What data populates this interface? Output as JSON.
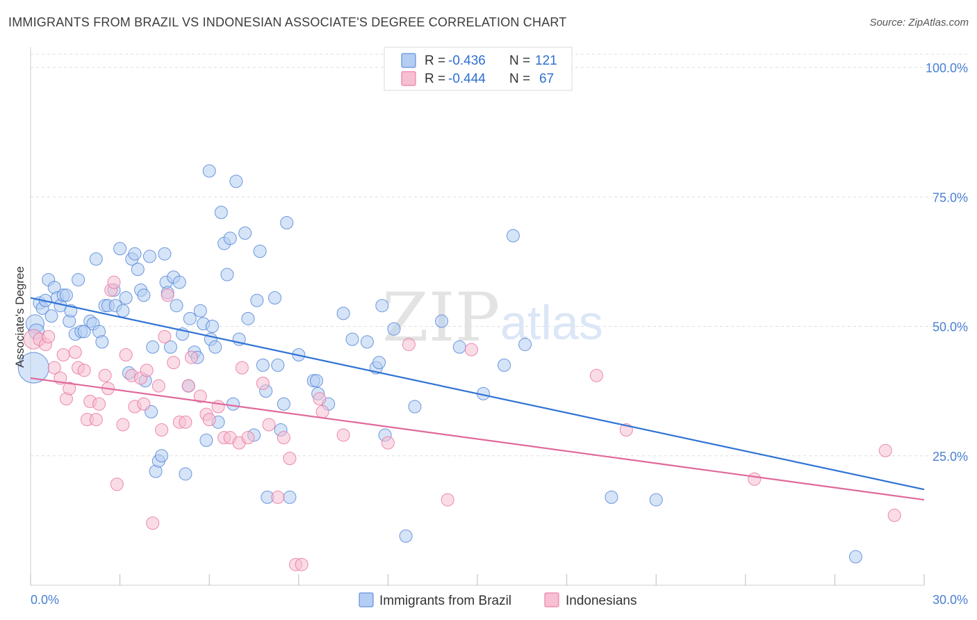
{
  "title": "IMMIGRANTS FROM BRAZIL VS INDONESIAN ASSOCIATE'S DEGREE CORRELATION CHART",
  "source": "Source: ZipAtlas.com",
  "watermark": {
    "zip": "ZIP",
    "atlas": "atlas"
  },
  "colors": {
    "blue": "#4a7fd4",
    "blue_fill": "#b4cdf2",
    "blue_line": "#2f72d4",
    "pink": "#e86e9c",
    "pink_fill": "#f6bfd2",
    "pink_line": "#e0689a",
    "grid": "#dddddd"
  },
  "legend": {
    "rows": [
      {
        "r_label": "R =",
        "r_value": "-0.436",
        "n_label": "N =",
        "n_value": "121",
        "series": "blue"
      },
      {
        "r_label": "R =",
        "r_value": "-0.444",
        "n_label": "N =",
        "n_value": "67",
        "series": "pink"
      }
    ]
  },
  "chart_data": {
    "type": "scatter",
    "title": "IMMIGRANTS FROM BRAZIL VS INDONESIAN ASSOCIATE'S DEGREE CORRELATION CHART",
    "xlabel": "",
    "ylabel": "Associate's Degree",
    "xlim": [
      0,
      30
    ],
    "ylim": [
      0,
      105
    ],
    "x_tick_labels": [
      "0.0%",
      "30.0%"
    ],
    "y_ticks": [
      25,
      50,
      75,
      100
    ],
    "y_tick_labels": [
      "25.0%",
      "50.0%",
      "75.0%",
      "100.0%"
    ],
    "grid": true,
    "legend_position": "top-center",
    "series": [
      {
        "name": "Immigrants from Brazil",
        "color": "blue",
        "trend": [
          [
            0,
            55.5
          ],
          [
            30,
            18.5
          ]
        ],
        "points": [
          [
            0.1,
            42.0,
            22
          ],
          [
            0.15,
            50.5,
            13
          ],
          [
            0.2,
            49,
            11
          ],
          [
            0.3,
            54.5,
            9
          ],
          [
            0.4,
            53.5,
            9
          ],
          [
            0.5,
            55,
            9
          ],
          [
            0.6,
            59,
            9
          ],
          [
            0.7,
            52,
            9
          ],
          [
            0.8,
            57.5,
            9
          ],
          [
            0.9,
            55.5,
            9
          ],
          [
            1.0,
            54,
            9
          ],
          [
            1.1,
            56,
            9
          ],
          [
            1.2,
            56,
            9
          ],
          [
            1.3,
            51,
            9
          ],
          [
            1.35,
            53,
            9
          ],
          [
            1.5,
            48.5,
            9
          ],
          [
            1.6,
            59,
            9
          ],
          [
            1.7,
            49,
            9
          ],
          [
            1.8,
            49,
            9
          ],
          [
            2.0,
            51,
            9
          ],
          [
            2.1,
            50.5,
            9
          ],
          [
            2.2,
            63,
            9
          ],
          [
            2.3,
            49,
            9
          ],
          [
            2.4,
            47,
            9
          ],
          [
            2.5,
            54,
            9
          ],
          [
            2.6,
            54,
            9
          ],
          [
            2.8,
            57,
            9
          ],
          [
            2.85,
            54,
            9
          ],
          [
            3.0,
            65,
            9
          ],
          [
            3.1,
            53,
            9
          ],
          [
            3.2,
            55.5,
            9
          ],
          [
            3.3,
            41,
            9
          ],
          [
            3.4,
            63,
            9
          ],
          [
            3.5,
            64,
            9
          ],
          [
            3.6,
            61,
            9
          ],
          [
            3.7,
            57,
            9
          ],
          [
            3.8,
            56,
            9
          ],
          [
            3.85,
            39.5,
            9
          ],
          [
            4.0,
            63.5,
            9
          ],
          [
            4.05,
            33.5,
            9
          ],
          [
            4.1,
            46,
            9
          ],
          [
            4.2,
            22,
            9
          ],
          [
            4.3,
            24,
            9
          ],
          [
            4.4,
            25,
            9
          ],
          [
            4.5,
            64,
            9
          ],
          [
            4.55,
            58.5,
            9
          ],
          [
            4.6,
            56.5,
            9
          ],
          [
            4.7,
            46,
            9
          ],
          [
            4.8,
            59.5,
            9
          ],
          [
            4.9,
            54,
            9
          ],
          [
            5.0,
            58.5,
            9
          ],
          [
            5.1,
            48.5,
            9
          ],
          [
            5.2,
            21.5,
            9
          ],
          [
            5.3,
            38.5,
            9
          ],
          [
            5.35,
            51.5,
            9
          ],
          [
            5.5,
            45,
            9
          ],
          [
            5.6,
            44,
            9
          ],
          [
            5.7,
            53,
            9
          ],
          [
            5.8,
            50.5,
            9
          ],
          [
            5.9,
            28,
            9
          ],
          [
            6.0,
            80,
            9
          ],
          [
            6.05,
            47.5,
            9
          ],
          [
            6.1,
            50,
            9
          ],
          [
            6.2,
            46,
            9
          ],
          [
            6.3,
            31.5,
            9
          ],
          [
            6.4,
            72,
            9
          ],
          [
            6.5,
            66,
            9
          ],
          [
            6.6,
            60,
            9
          ],
          [
            6.7,
            67,
            9
          ],
          [
            6.8,
            35,
            9
          ],
          [
            6.9,
            78,
            9
          ],
          [
            7.0,
            47.5,
            9
          ],
          [
            7.2,
            68,
            9
          ],
          [
            7.3,
            51.5,
            9
          ],
          [
            7.5,
            29,
            9
          ],
          [
            7.6,
            55,
            9
          ],
          [
            7.7,
            64.5,
            9
          ],
          [
            7.8,
            42.5,
            9
          ],
          [
            7.9,
            37.5,
            9
          ],
          [
            7.95,
            17,
            9
          ],
          [
            8.2,
            55.5,
            9
          ],
          [
            8.3,
            42.5,
            9
          ],
          [
            8.4,
            30,
            9
          ],
          [
            8.5,
            35,
            9
          ],
          [
            8.6,
            70,
            9
          ],
          [
            8.7,
            17,
            9
          ],
          [
            9.0,
            44.5,
            9
          ],
          [
            9.5,
            39.5,
            9
          ],
          [
            9.6,
            39.5,
            9
          ],
          [
            9.65,
            37,
            9
          ],
          [
            10.0,
            35,
            9
          ],
          [
            10.5,
            52.5,
            9
          ],
          [
            10.8,
            47.5,
            9
          ],
          [
            11.3,
            47,
            9
          ],
          [
            11.6,
            42,
            9
          ],
          [
            11.7,
            43,
            9
          ],
          [
            11.8,
            54,
            9
          ],
          [
            11.9,
            29,
            9
          ],
          [
            12.2,
            49.5,
            9
          ],
          [
            12.6,
            9.5,
            9
          ],
          [
            12.9,
            34.5,
            9
          ],
          [
            13.8,
            51,
            9
          ],
          [
            14.4,
            46,
            9
          ],
          [
            15.2,
            37,
            9
          ],
          [
            15.9,
            42.5,
            9
          ],
          [
            16.2,
            67.5,
            9
          ],
          [
            16.6,
            46.5,
            9
          ],
          [
            19.5,
            17,
            9
          ],
          [
            21.0,
            16.5,
            9
          ],
          [
            27.7,
            5.5,
            9
          ]
        ]
      },
      {
        "name": "Indonesians",
        "color": "pink",
        "trend": [
          [
            0,
            40
          ],
          [
            30,
            16.5
          ]
        ],
        "points": [
          [
            0.1,
            47.5,
            14
          ],
          [
            0.3,
            47.5,
            9
          ],
          [
            0.5,
            46.5,
            9
          ],
          [
            0.6,
            48,
            9
          ],
          [
            0.8,
            42,
            9
          ],
          [
            1.0,
            40,
            9
          ],
          [
            1.1,
            44.5,
            9
          ],
          [
            1.2,
            36,
            9
          ],
          [
            1.3,
            38,
            9
          ],
          [
            1.5,
            45,
            9
          ],
          [
            1.6,
            42,
            9
          ],
          [
            1.8,
            41.5,
            9
          ],
          [
            1.9,
            32,
            9
          ],
          [
            2.0,
            35.5,
            9
          ],
          [
            2.2,
            32,
            9
          ],
          [
            2.3,
            35,
            9
          ],
          [
            2.5,
            40.5,
            9
          ],
          [
            2.6,
            38,
            9
          ],
          [
            2.7,
            57,
            9
          ],
          [
            2.8,
            58.5,
            9
          ],
          [
            2.9,
            19.5,
            9
          ],
          [
            3.1,
            31,
            9
          ],
          [
            3.2,
            44.5,
            9
          ],
          [
            3.4,
            40.5,
            9
          ],
          [
            3.5,
            34.5,
            9
          ],
          [
            3.7,
            40,
            9
          ],
          [
            3.8,
            35,
            9
          ],
          [
            3.9,
            41.5,
            9
          ],
          [
            4.1,
            12,
            9
          ],
          [
            4.3,
            38.5,
            9
          ],
          [
            4.4,
            30,
            9
          ],
          [
            4.5,
            48,
            9
          ],
          [
            4.6,
            56,
            9
          ],
          [
            4.8,
            43,
            9
          ],
          [
            5.0,
            31.5,
            9
          ],
          [
            5.2,
            31.5,
            9
          ],
          [
            5.3,
            38.5,
            9
          ],
          [
            5.4,
            44,
            9
          ],
          [
            5.7,
            36.5,
            9
          ],
          [
            5.9,
            33,
            9
          ],
          [
            6.0,
            32,
            9
          ],
          [
            6.3,
            34.5,
            9
          ],
          [
            6.5,
            28.5,
            9
          ],
          [
            6.7,
            28.5,
            9
          ],
          [
            7.0,
            27.5,
            9
          ],
          [
            7.1,
            42,
            9
          ],
          [
            7.3,
            28.5,
            9
          ],
          [
            7.8,
            39,
            9
          ],
          [
            8.0,
            31,
            9
          ],
          [
            8.3,
            17,
            9
          ],
          [
            8.5,
            28.5,
            9
          ],
          [
            8.7,
            24.5,
            9
          ],
          [
            8.9,
            4,
            9
          ],
          [
            9.1,
            4,
            9
          ],
          [
            9.7,
            36,
            9
          ],
          [
            9.8,
            33.5,
            9
          ],
          [
            10.5,
            29,
            9
          ],
          [
            12.0,
            27.5,
            9
          ],
          [
            12.7,
            46.5,
            9
          ],
          [
            14.0,
            16.5,
            9
          ],
          [
            14.8,
            45.5,
            9
          ],
          [
            19.0,
            40.5,
            9
          ],
          [
            20.0,
            30,
            9
          ],
          [
            24.3,
            20.5,
            9
          ],
          [
            28.7,
            26,
            9
          ],
          [
            29.0,
            13.5,
            9
          ]
        ]
      }
    ]
  }
}
